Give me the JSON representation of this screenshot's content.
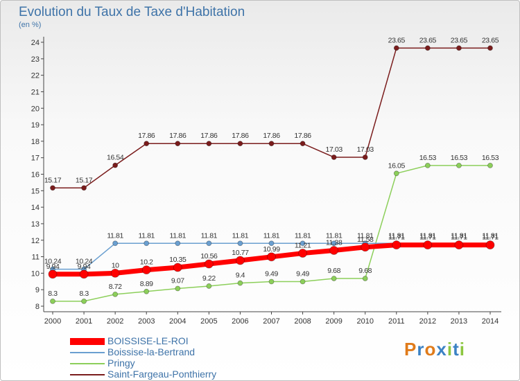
{
  "chart_data": {
    "type": "line",
    "title": "Evolution du Taux de Taxe d'Habitation",
    "subtitle": "(en %)",
    "x": [
      "2000",
      "2001",
      "2002",
      "2003",
      "2004",
      "2005",
      "2006",
      "2007",
      "2008",
      "2009",
      "2010",
      "2011",
      "2012",
      "2013",
      "2014"
    ],
    "ylim": [
      8,
      24
    ],
    "yticks": [
      8,
      9,
      10,
      11,
      12,
      13,
      14,
      15,
      16,
      17,
      18,
      19,
      20,
      21,
      22,
      23,
      24
    ],
    "grid": false,
    "legend_position": "bottom-left",
    "series": [
      {
        "name": "Saint-Fargeau-Ponthierry",
        "color": "#7a1c1c",
        "values": [
          15.17,
          15.17,
          16.54,
          17.86,
          17.86,
          17.86,
          17.86,
          17.86,
          17.86,
          17.03,
          17.03,
          23.65,
          23.65,
          23.65,
          23.65
        ],
        "labels": [
          "15.17",
          "15.17",
          "16.54",
          "17.86",
          "17.86",
          "17.86",
          "17.86",
          "17.86",
          "17.86",
          "17.03",
          "17.03",
          "23.65",
          "23.65",
          "23.65",
          "23.65"
        ]
      },
      {
        "name": "Pringy",
        "color": "#8ccf5a",
        "values": [
          8.3,
          8.3,
          8.72,
          8.89,
          9.07,
          9.22,
          9.4,
          9.49,
          9.49,
          9.68,
          9.68,
          16.05,
          16.53,
          16.53,
          16.53
        ],
        "labels": [
          "8.3",
          "8.3",
          "8.72",
          "8.89",
          "9.07",
          "9.22",
          "9.4",
          "9.49",
          "9.49",
          "9.68",
          "9.68",
          "16.05",
          "16.53",
          "16.53",
          "16.53"
        ]
      },
      {
        "name": "Boissise-la-Bertrand",
        "color": "#6a9fd0",
        "values": [
          10.24,
          10.24,
          11.81,
          11.81,
          11.81,
          11.81,
          11.81,
          11.81,
          11.81,
          11.81,
          11.81,
          11.81,
          11.81,
          11.81,
          11.81
        ],
        "labels": [
          "10.24",
          "10.24",
          "11.81",
          "11.81",
          "11.81",
          "11.81",
          "11.81",
          "11.81",
          "11.81",
          "11.81",
          "11.81",
          "11.81",
          "11.81",
          "11.81",
          "11.81"
        ]
      },
      {
        "name": "BOISSISE-LE-ROI",
        "color": "#ff0000",
        "values": [
          9.94,
          9.94,
          10,
          10.2,
          10.35,
          10.56,
          10.77,
          10.99,
          11.21,
          11.38,
          11.58,
          11.71,
          11.71,
          11.71,
          11.71
        ],
        "labels": [
          "9.94",
          "9.94",
          "10",
          "10.2",
          "10.35",
          "10.56",
          "10.77",
          "10.99",
          "11.21",
          "11.38",
          "11.58",
          "11.71",
          "11.71",
          "11.71",
          "11.71"
        ]
      }
    ],
    "legend_order": [
      "BOISSISE-LE-ROI",
      "Boissise-la-Bertrand",
      "Pringy",
      "Saint-Fargeau-Ponthierry"
    ]
  },
  "logo": {
    "letters": [
      "P",
      "r",
      "o",
      "x",
      "i",
      "t",
      "i"
    ],
    "colors": [
      "#e07b1a",
      "#3c82c4",
      "#e07b1a",
      "#3c82c4",
      "#8cc63f",
      "#3c82c4",
      "#8cc63f"
    ]
  }
}
